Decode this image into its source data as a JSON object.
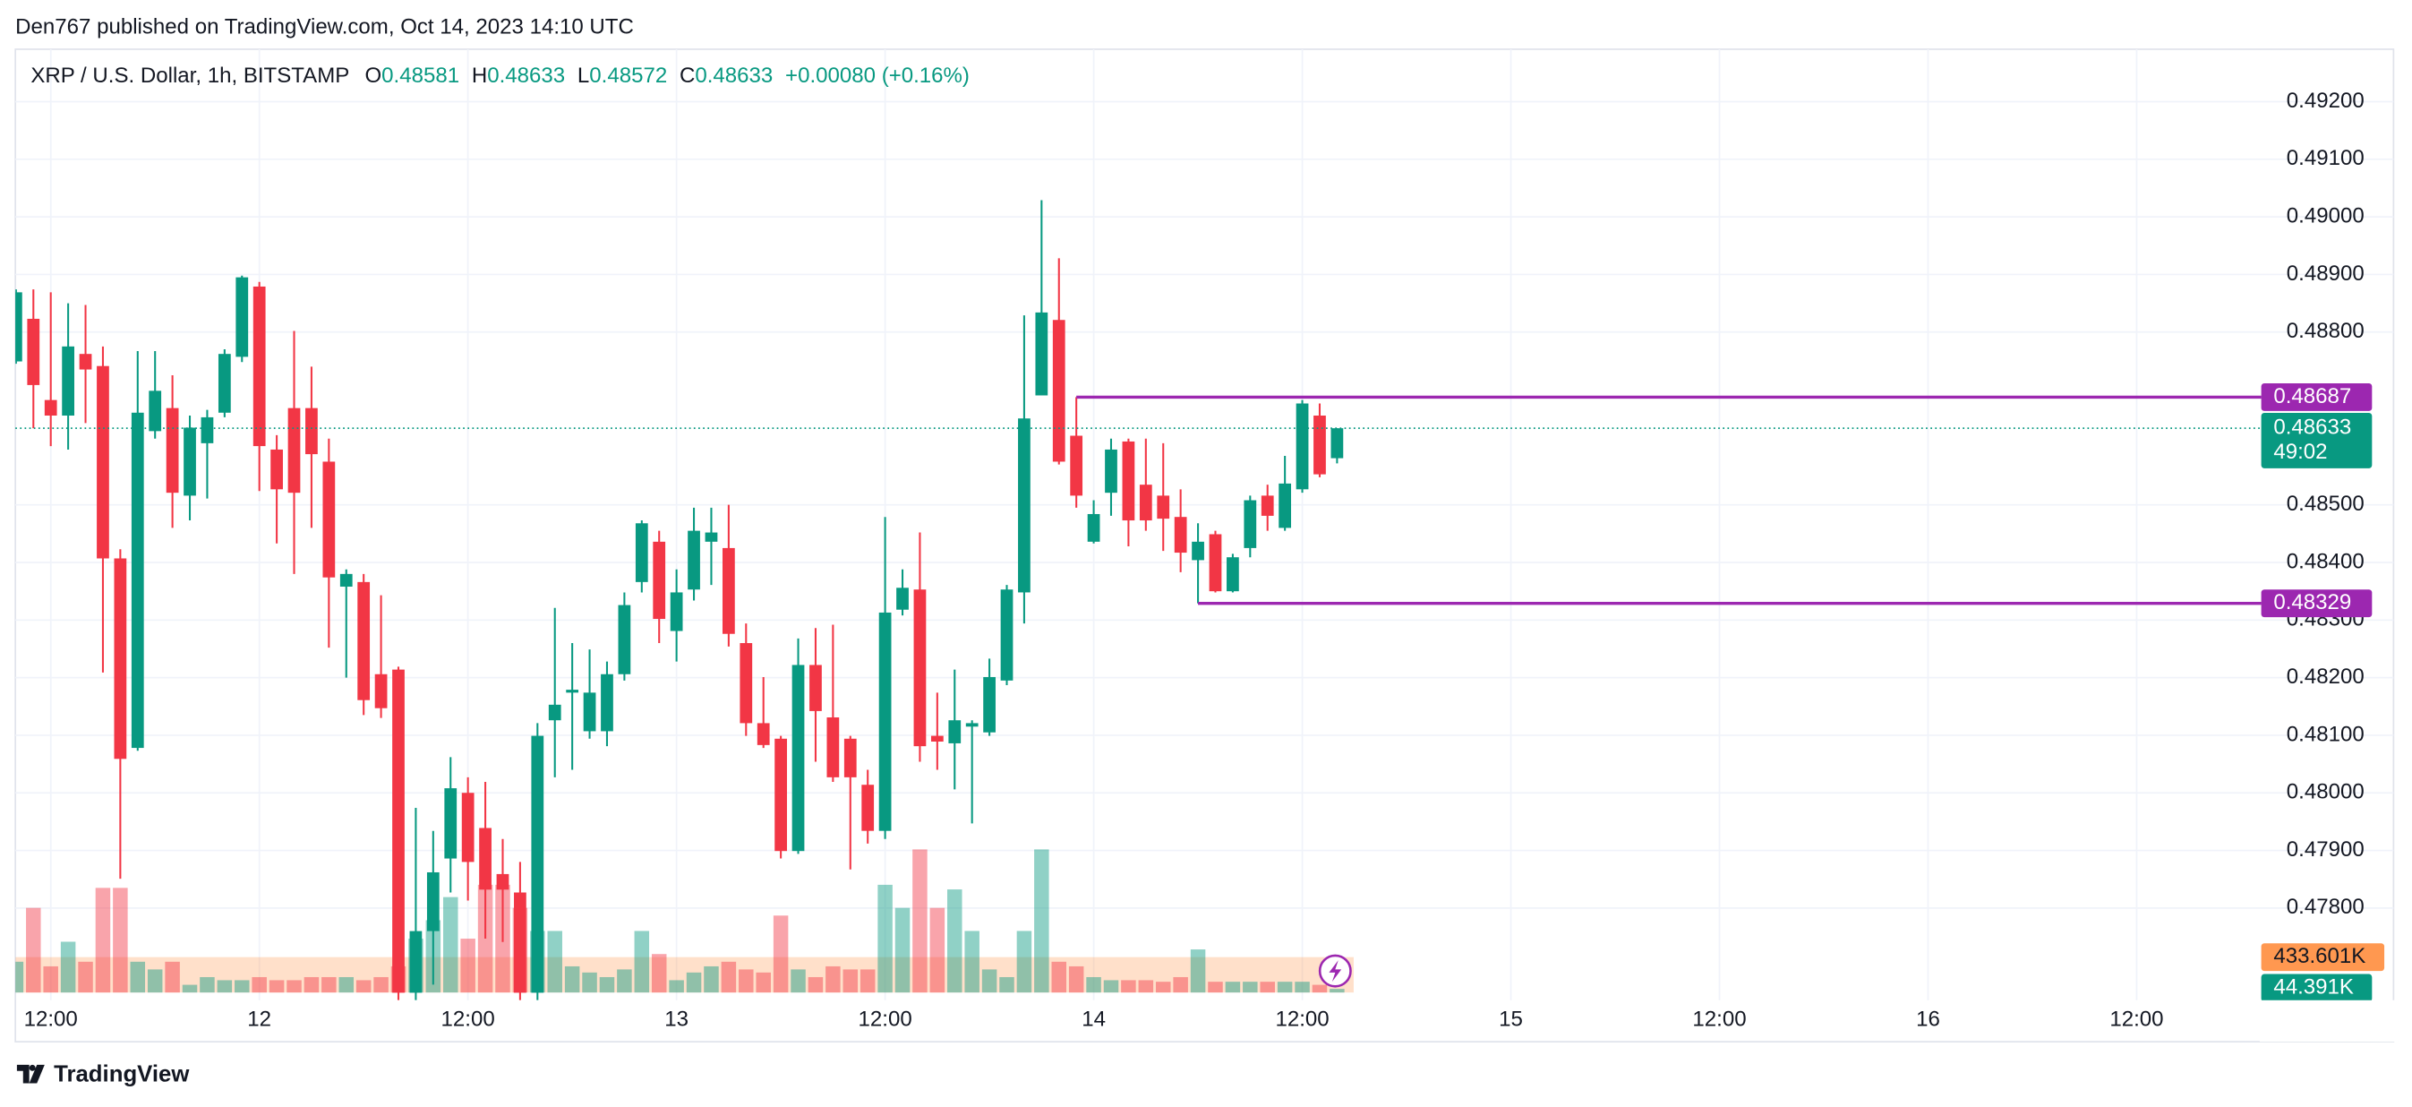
{
  "header": {
    "published": "Den767 published on TradingView.com, Oct 14, 2023 14:10 UTC"
  },
  "chart_data": {
    "type": "candlestick",
    "title": "XRP / U.S. Dollar, 1h, BITSTAMP",
    "legend_values": [
      {
        "label": "O",
        "value": "0.48581"
      },
      {
        "label": "H",
        "value": "0.48633"
      },
      {
        "label": "L",
        "value": "0.48572"
      },
      {
        "label": "C",
        "value": "0.48633"
      }
    ],
    "change": "+0.00080 (+0.16%)",
    "categories": [
      null,
      null,
      "12:00",
      null,
      null,
      null,
      null,
      null,
      null,
      null,
      null,
      null,
      null,
      null,
      "12",
      null,
      null,
      null,
      null,
      null,
      null,
      null,
      null,
      null,
      null,
      null,
      "12:00",
      null,
      null,
      null,
      null,
      null,
      null,
      null,
      null,
      null,
      null,
      null,
      "13",
      null,
      null,
      null,
      null,
      null,
      null,
      null,
      null,
      null,
      null,
      null,
      "12:00",
      null,
      null,
      null,
      null,
      null,
      null,
      null,
      null,
      null,
      null,
      null,
      "14",
      null,
      null,
      null,
      null,
      null,
      null,
      null,
      null,
      null,
      null,
      null,
      "12:00",
      null,
      null,
      null,
      null,
      null,
      null,
      null,
      null,
      null,
      null,
      null,
      "15",
      null,
      null,
      null,
      null,
      null,
      null,
      null,
      null,
      null,
      null,
      null,
      "12:00",
      null,
      null,
      null,
      null,
      null,
      null,
      null,
      null,
      null,
      null,
      null,
      "16",
      null,
      null,
      null,
      null,
      null,
      null,
      null,
      null,
      null,
      null,
      null,
      "12:00",
      null,
      null,
      null,
      null,
      null,
      null,
      null,
      null,
      null,
      null,
      null,
      null,
      null,
      null
    ],
    "open": [
      0.48749,
      0.48823,
      0.48682,
      0.48655,
      0.48762,
      0.48741,
      0.48407,
      0.48078,
      0.48628,
      0.48668,
      0.48516,
      0.48607,
      0.4866,
      0.48757,
      0.48879,
      0.48596,
      0.48668,
      0.48668,
      0.48575,
      0.48358,
      0.48366,
      0.48206,
      0.48214,
      0.47653,
      0.4776,
      0.47886,
      0.48,
      0.47939,
      0.47859,
      0.47827,
      0.47653,
      0.48126,
      0.48174,
      0.48107,
      0.48107,
      0.48206,
      0.48366,
      0.48436,
      0.48281,
      0.48353,
      0.48436,
      0.48425,
      0.4826,
      0.48121,
      0.48094,
      0.47899,
      0.48222,
      0.48131,
      0.48094,
      0.48014,
      0.47934,
      0.48318,
      0.48353,
      0.48099,
      0.48086,
      0.48115,
      0.48105,
      0.48195,
      0.48348,
      0.4869,
      0.48821,
      0.4862,
      0.48436,
      0.48521,
      0.4861,
      0.48535,
      0.48516,
      0.48479,
      0.48404,
      0.48449,
      0.4835,
      0.48425,
      0.48516,
      0.4846,
      0.48527,
      0.48655,
      0.48581,
      null,
      null,
      null,
      null,
      null,
      null,
      null,
      null,
      null,
      null,
      null,
      null,
      null,
      null,
      null,
      null,
      null,
      null,
      null,
      null,
      null,
      null,
      null,
      null,
      null,
      null,
      null,
      null,
      null,
      null,
      null,
      null,
      null,
      null,
      null,
      null,
      null,
      null,
      null,
      null,
      null,
      null,
      null,
      null,
      null,
      null,
      null,
      null,
      null,
      null,
      null,
      null,
      null,
      null,
      null,
      null,
      null,
      null,
      null,
      null
    ],
    "high": [
      0.48874,
      0.48874,
      0.48869,
      0.4885,
      0.48847,
      0.48775,
      0.48423,
      0.48767,
      0.48767,
      0.48725,
      0.48655,
      0.48665,
      0.4877,
      0.48898,
      0.48887,
      0.48621,
      0.48802,
      0.4874,
      0.48615,
      0.48388,
      0.4838,
      0.48343,
      0.48219,
      0.47974,
      0.47934,
      0.48062,
      0.48027,
      0.48019,
      0.4792,
      0.4788,
      0.48121,
      0.48321,
      0.4826,
      0.48249,
      0.48228,
      0.48348,
      0.48473,
      0.48455,
      0.48388,
      0.48495,
      0.48495,
      0.485,
      0.48294,
      0.48201,
      0.48099,
      0.48268,
      0.48286,
      0.48292,
      0.48099,
      0.4804,
      0.48479,
      0.48388,
      0.48452,
      0.48174,
      0.48214,
      0.48126,
      0.48233,
      0.48361,
      0.48829,
      0.49029,
      0.48928,
      0.48687,
      0.48508,
      0.48615,
      0.48615,
      0.48615,
      0.48607,
      0.48527,
      0.48468,
      0.48455,
      0.48415,
      0.48516,
      0.48535,
      0.48585,
      0.48682,
      0.48676,
      0.48633,
      null,
      null,
      null,
      null,
      null,
      null,
      null,
      null,
      null,
      null,
      null,
      null,
      null,
      null,
      null,
      null,
      null,
      null,
      null,
      null,
      null,
      null,
      null,
      null,
      null,
      null,
      null,
      null,
      null,
      null,
      null,
      null,
      null,
      null,
      null,
      null,
      null,
      null,
      null,
      null,
      null,
      null,
      null,
      null,
      null,
      null,
      null,
      null,
      null,
      null,
      null,
      null,
      null,
      null,
      null,
      null,
      null,
      null,
      null,
      null
    ],
    "low": [
      0.48745,
      0.48633,
      0.48602,
      0.48596,
      0.48642,
      0.48209,
      0.47851,
      0.48073,
      0.48615,
      0.4846,
      0.48473,
      0.48511,
      0.48652,
      0.48748,
      0.48524,
      0.48433,
      0.4838,
      0.4846,
      0.48252,
      0.482,
      0.48135,
      0.4813,
      0.4764,
      0.4764,
      0.47667,
      0.47827,
      0.47813,
      0.47747,
      0.47741,
      0.4764,
      0.4764,
      0.48027,
      0.4804,
      0.48094,
      0.48081,
      0.48195,
      0.48348,
      0.4826,
      0.48228,
      0.48334,
      0.48361,
      0.48254,
      0.48099,
      0.48078,
      0.47886,
      0.47894,
      0.48054,
      0.48019,
      0.47867,
      0.47912,
      0.4792,
      0.48308,
      0.48054,
      0.4804,
      0.48006,
      0.47947,
      0.48099,
      0.48187,
      0.48294,
      0.4869,
      0.4857,
      0.48495,
      0.48433,
      0.48481,
      0.48428,
      0.48455,
      0.4842,
      0.48383,
      0.48329,
      0.48348,
      0.48348,
      0.48409,
      0.48455,
      0.48455,
      0.48521,
      0.48548,
      0.48572,
      null,
      null,
      null,
      null,
      null,
      null,
      null,
      null,
      null,
      null,
      null,
      null,
      null,
      null,
      null,
      null,
      null,
      null,
      null,
      null,
      null,
      null,
      null,
      null,
      null,
      null,
      null,
      null,
      null,
      null,
      null,
      null,
      null,
      null,
      null,
      null,
      null,
      null,
      null,
      null,
      null,
      null,
      null,
      null,
      null,
      null,
      null,
      null,
      null,
      null,
      null,
      null,
      null,
      null,
      null,
      null,
      null,
      null,
      null,
      null
    ],
    "close": [
      0.48869,
      0.48708,
      0.48655,
      0.48775,
      0.48735,
      0.48407,
      0.48059,
      0.4866,
      0.48698,
      0.48521,
      0.48634,
      0.48652,
      0.48762,
      0.48895,
      0.48602,
      0.48527,
      0.48521,
      0.48588,
      0.48374,
      0.4838,
      0.48161,
      0.48147,
      0.47653,
      0.4776,
      0.47862,
      0.48008,
      0.4788,
      0.47832,
      0.47832,
      0.47653,
      0.48099,
      0.48153,
      0.48179,
      0.48174,
      0.48206,
      0.48326,
      0.48468,
      0.48302,
      0.48348,
      0.48455,
      0.48452,
      0.48276,
      0.48121,
      0.48083,
      0.47899,
      0.48222,
      0.48142,
      0.48027,
      0.48027,
      0.47934,
      0.48313,
      0.48356,
      0.48081,
      0.48089,
      0.48126,
      0.48121,
      0.48201,
      0.48353,
      0.4865,
      0.48834,
      0.48575,
      0.48516,
      0.48484,
      0.48596,
      0.48473,
      0.48473,
      0.48476,
      0.48417,
      0.48436,
      0.4835,
      0.48409,
      0.48508,
      0.48481,
      0.48537,
      0.48676,
      0.48553,
      0.48633,
      null,
      null,
      null,
      null,
      null,
      null,
      null,
      null,
      null,
      null,
      null,
      null,
      null,
      null,
      null,
      null,
      null,
      null,
      null,
      null,
      null,
      null,
      null,
      null,
      null,
      null,
      null,
      null,
      null,
      null,
      null,
      null,
      null,
      null,
      null,
      null,
      null,
      null,
      null,
      null,
      null,
      null,
      null,
      null,
      null,
      null,
      null,
      null,
      null,
      null,
      null,
      null,
      null,
      null,
      null,
      null,
      null,
      null,
      null,
      null
    ],
    "volume": [
      377000,
      1036750,
      320450,
      622050,
      377000,
      1281800,
      1281800,
      377000,
      282750,
      377000,
      94250,
      188500,
      150800,
      150800,
      188500,
      150800,
      150800,
      188500,
      188500,
      188500,
      150800,
      188500,
      320450,
      659750,
      885950,
      1168700,
      659750,
      1319500,
      1319500,
      1036750,
      754000,
      754000,
      320450,
      245050,
      188500,
      282750,
      754000,
      471250,
      150800,
      245050,
      320450,
      377000,
      282750,
      245050,
      942500,
      282750,
      188500,
      320450,
      282750,
      282750,
      1319500,
      1036750,
      1753050,
      1036750,
      1262950,
      754000,
      282750,
      188500,
      754000,
      1753050,
      377000,
      320450,
      188500,
      150800,
      150800,
      150800,
      131950,
      188500,
      527800,
      131950,
      131950,
      131950,
      131950,
      131950,
      131950,
      94250,
      44391,
      null,
      null,
      null,
      null,
      null,
      null,
      null,
      null,
      null,
      null,
      null,
      null,
      null,
      null,
      null,
      null,
      null,
      null,
      null,
      null,
      null,
      null,
      null,
      null,
      null,
      null,
      null,
      null,
      null,
      null,
      null,
      null,
      null,
      null,
      null,
      null,
      null,
      null,
      null,
      null,
      null,
      null,
      null,
      null,
      null,
      null,
      null,
      null,
      null,
      null,
      null,
      null,
      null,
      null,
      null,
      null,
      null,
      null,
      null,
      null
    ],
    "last_volume_label": "44.391K",
    "up_color": "#089981",
    "down_color": "#f23645",
    "ylim": [
      0.4764,
      0.49291
    ],
    "yticks": [
      {
        "value": 0.492,
        "label": "0.49200"
      },
      {
        "value": 0.491,
        "label": "0.49100"
      },
      {
        "value": 0.49,
        "label": "0.49000"
      },
      {
        "value": 0.489,
        "label": "0.48900"
      },
      {
        "value": 0.488,
        "label": "0.48800"
      },
      {
        "value": 0.485,
        "label": "0.48500"
      },
      {
        "value": 0.484,
        "label": "0.48400"
      },
      {
        "value": 0.483,
        "label": "0.48300"
      },
      {
        "value": 0.482,
        "label": "0.48200"
      },
      {
        "value": 0.481,
        "label": "0.48100"
      },
      {
        "value": 0.48,
        "label": "0.48000"
      },
      {
        "value": 0.479,
        "label": "0.47900"
      },
      {
        "value": 0.478,
        "label": "0.47800"
      }
    ],
    "volume_lim": [
      0,
      1885000
    ],
    "volume_ma": {
      "value": 433601,
      "label": "433.601K",
      "color": "#ff9850"
    },
    "price_line": {
      "value": 0.48633,
      "label": "0.48633",
      "countdown": "49:02",
      "color": "#089981"
    },
    "levels": [
      {
        "value": 0.48687,
        "label": "0.48687"
      },
      {
        "value": 0.48329,
        "label": "0.48329"
      }
    ],
    "level_color": "#9c27b0",
    "grid": true
  },
  "footer": {
    "brand": "TradingView"
  }
}
